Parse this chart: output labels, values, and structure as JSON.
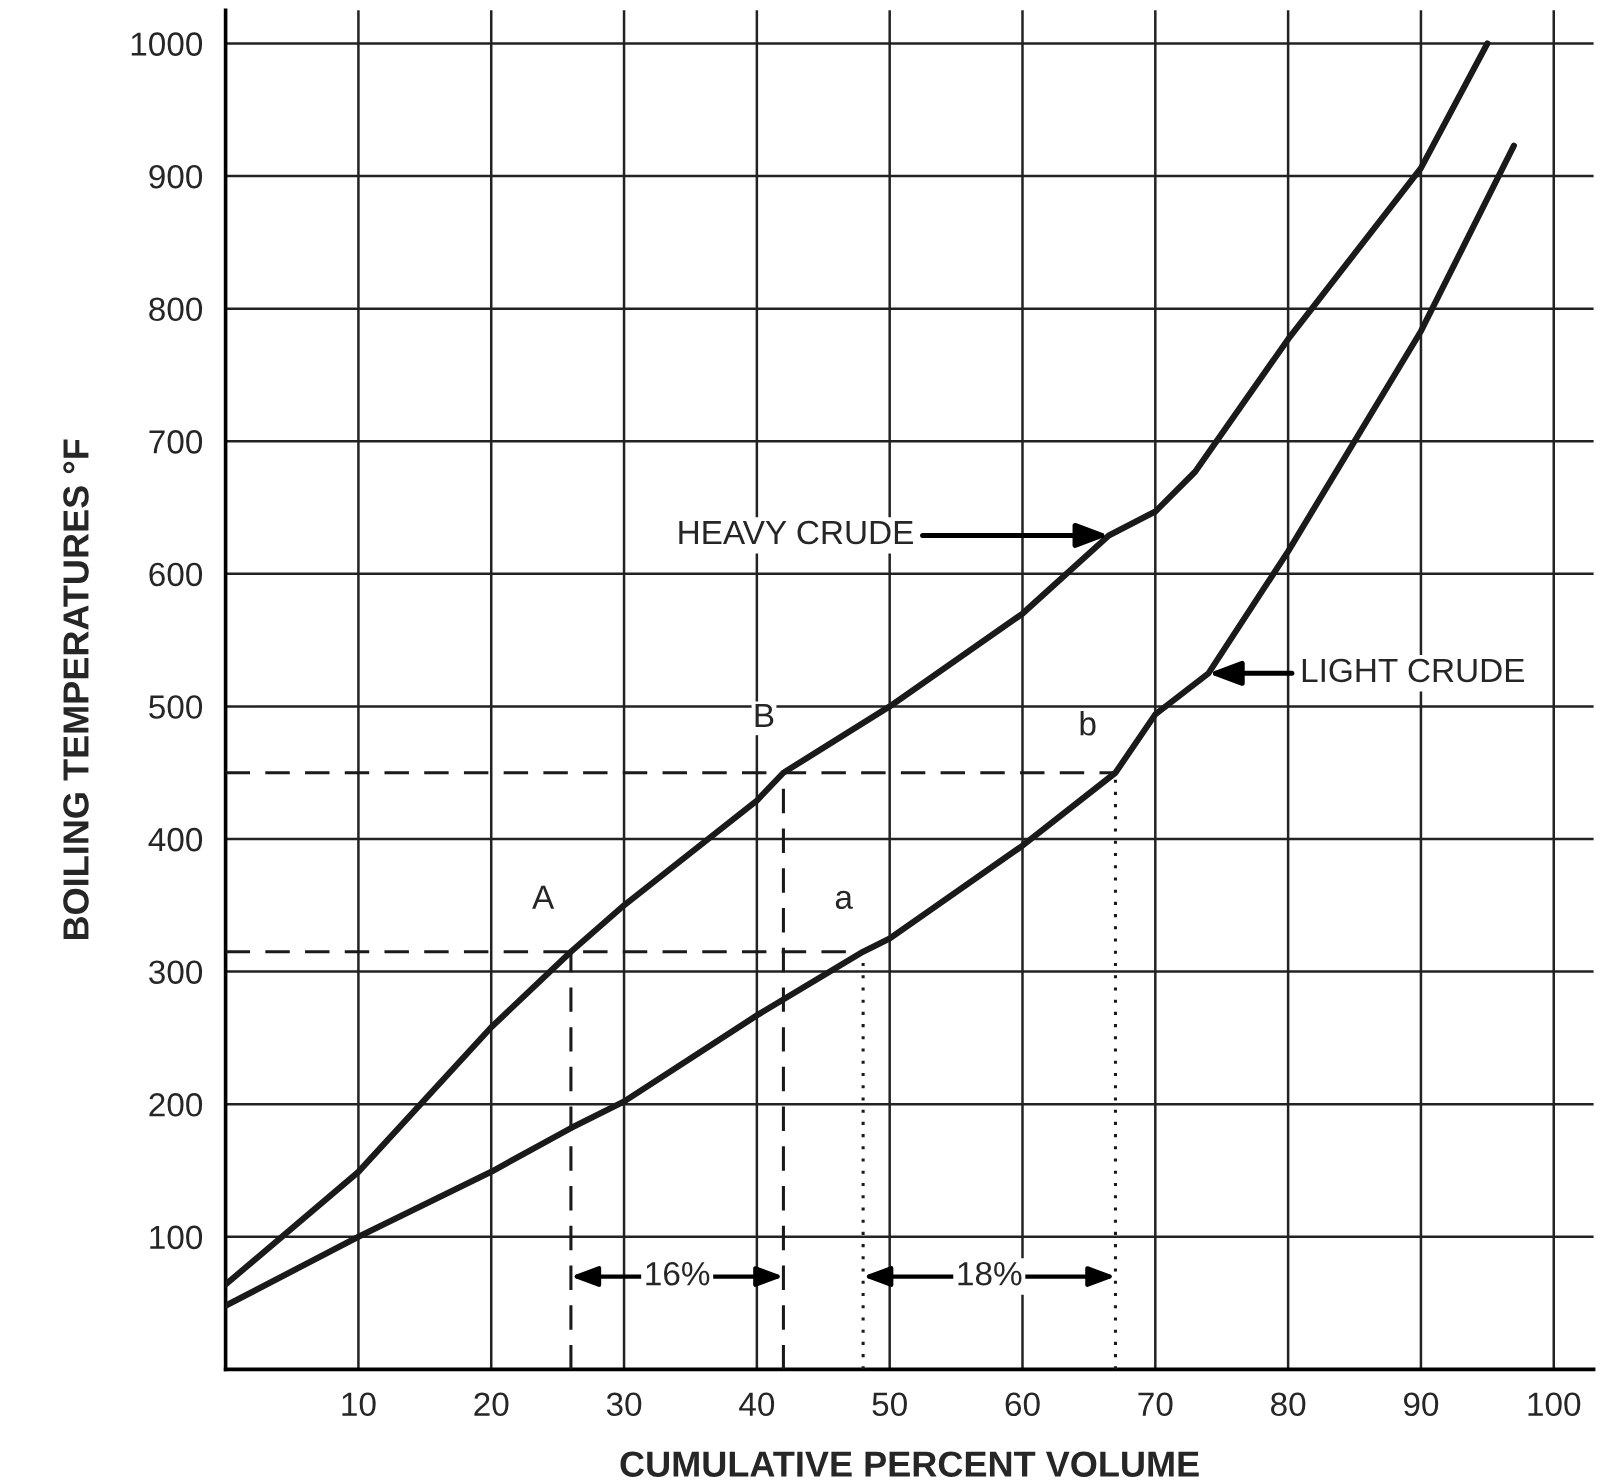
{
  "chart_data": {
    "type": "line",
    "xlabel": "CUMULATIVE PERCENT VOLUME",
    "ylabel": "BOILING TEMPERATURES °F",
    "xlim": [
      0,
      103
    ],
    "ylim": [
      0,
      1025
    ],
    "xticks": [
      10,
      20,
      30,
      40,
      50,
      60,
      70,
      80,
      90,
      100
    ],
    "yticks": [
      100,
      200,
      300,
      400,
      500,
      600,
      700,
      800,
      900,
      1000
    ],
    "grid": true,
    "legend": false,
    "marker": "none",
    "series": [
      {
        "color": "#1a1a1a",
        "line_style": "solid",
        "x": [
          0,
          10,
          20,
          26,
          30,
          40,
          42,
          50,
          60,
          66.5,
          70,
          73,
          80,
          90,
          95
        ],
        "values": [
          64,
          149,
          258,
          315,
          350,
          429,
          450,
          500,
          570,
          629,
          647,
          677,
          777,
          906,
          1000
        ]
      },
      {
        "color": "#1a1a1a",
        "line_style": "solid",
        "x": [
          0,
          10,
          20,
          26,
          30,
          40,
          48,
          50,
          60,
          67,
          70,
          74,
          80,
          90,
          97
        ],
        "values": [
          48,
          100,
          149,
          182,
          202,
          267,
          315,
          325,
          395,
          450,
          494,
          525,
          617,
          783,
          923
        ]
      },
      {
        "color": "#1a1a1a",
        "line_style": "dashed",
        "x": [
          0,
          48
        ],
        "values": [
          315,
          315
        ]
      },
      {
        "color": "#1a1a1a",
        "line_style": "dashed",
        "x": [
          0,
          67
        ],
        "values": [
          450,
          450
        ]
      },
      {
        "color": "#1a1a1a",
        "line_style": "dashed",
        "x": [
          26,
          26
        ],
        "values": [
          0,
          315
        ]
      },
      {
        "color": "#1a1a1a",
        "line_style": "dashed",
        "x": [
          42,
          42
        ],
        "values": [
          0,
          450
        ]
      },
      {
        "color": "#1a1a1a",
        "line_style": "dotted",
        "x": [
          48,
          48
        ],
        "values": [
          0,
          315
        ]
      },
      {
        "color": "#1a1a1a",
        "line_style": "dotted",
        "x": [
          67,
          67
        ],
        "values": [
          0,
          450
        ]
      }
    ],
    "annotations": [
      {
        "text": "HEAVY CRUDE",
        "x": 66.5,
        "y": 629
      },
      {
        "text": "LIGHT CRUDE",
        "x": 74,
        "y": 525
      },
      {
        "text": "A",
        "x": 26,
        "y": 315
      },
      {
        "text": "B",
        "x": 42,
        "y": 450
      },
      {
        "text": "a",
        "x": 48,
        "y": 315
      },
      {
        "text": "b",
        "x": 67,
        "y": 450
      },
      {
        "text": "16%",
        "x": 34,
        "y": 70
      },
      {
        "text": "18%",
        "x": 57.5,
        "y": 70
      }
    ]
  }
}
